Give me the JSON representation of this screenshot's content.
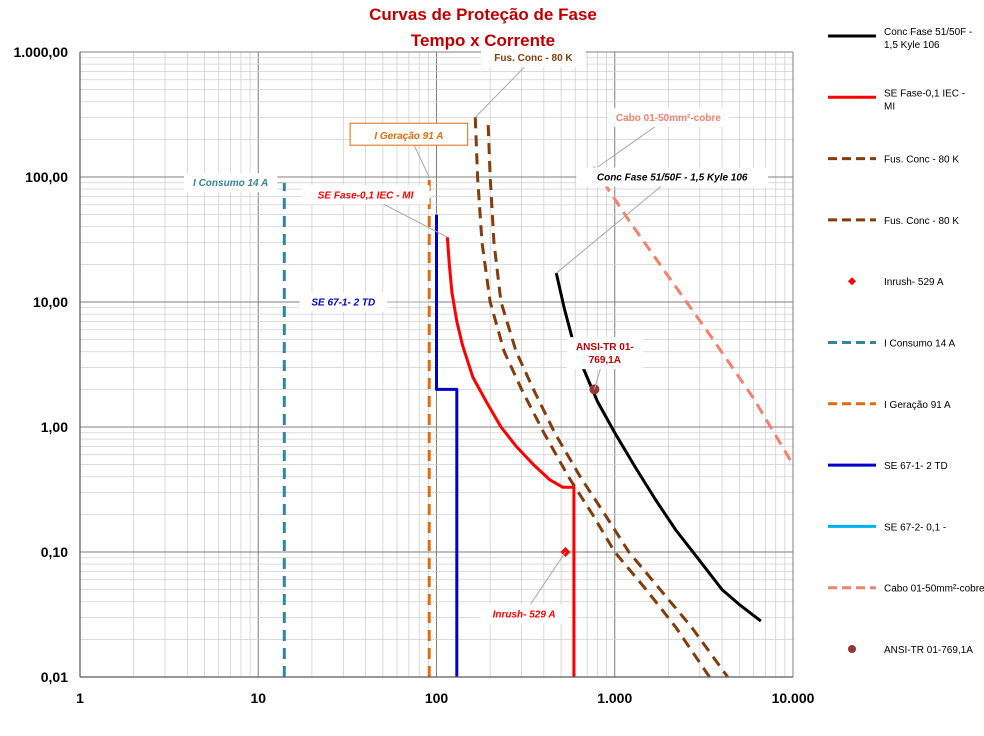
{
  "chart_data": {
    "type": "line",
    "title": "Curvas de Proteção de Fase",
    "subtitle": "Tempo x Corrente",
    "xlabel": "",
    "ylabel": "",
    "x_scale": "log",
    "y_scale": "log",
    "xlim": [
      1,
      10000
    ],
    "ylim": [
      0.01,
      1000
    ],
    "grid": true,
    "legend_position": "right",
    "x_ticks": [
      {
        "value": 1,
        "label": "1"
      },
      {
        "value": 10,
        "label": "10"
      },
      {
        "value": 100,
        "label": "100"
      },
      {
        "value": 1000,
        "label": "1.000"
      },
      {
        "value": 10000,
        "label": "10.000"
      }
    ],
    "y_ticks": [
      {
        "value": 0.01,
        "label": "0,01"
      },
      {
        "value": 0.1,
        "label": "0,10"
      },
      {
        "value": 1,
        "label": "1,00"
      },
      {
        "value": 10,
        "label": "10,00"
      },
      {
        "value": 100,
        "label": "100,00"
      },
      {
        "value": 1000,
        "label": "1.000,00"
      }
    ],
    "series": [
      {
        "name": "Conc Fase 51/50F - 1,5 Kyle 106",
        "color": "#000000",
        "dash": "solid",
        "marker": "none",
        "x": [
          470,
          520,
          580,
          650,
          800,
          1000,
          1300,
          1700,
          2200,
          3000,
          4000,
          5000,
          6600
        ],
        "y": [
          17,
          9,
          5,
          3.2,
          1.6,
          0.9,
          0.48,
          0.26,
          0.15,
          0.085,
          0.05,
          0.038,
          0.028
        ]
      },
      {
        "name": "SE Fase-0,1 IEC - MI",
        "color": "#ff0000",
        "dash": "solid",
        "marker": "none",
        "x": [
          115,
          118,
          122,
          130,
          140,
          160,
          190,
          230,
          280,
          350,
          430,
          510,
          590,
          590,
          590
        ],
        "y": [
          33,
          20,
          12,
          7,
          4.5,
          2.5,
          1.6,
          1.0,
          0.7,
          0.5,
          0.38,
          0.33,
          0.33,
          0.1,
          0.01
        ]
      },
      {
        "name": "Fus. Conc - 80 K",
        "color": "#843c0c",
        "dash": "dashed",
        "marker": "none",
        "x": [
          165,
          170,
          180,
          200,
          240,
          300,
          400,
          550,
          750,
          1000,
          1500,
          2200,
          3400
        ],
        "y": [
          300,
          100,
          30,
          10,
          4,
          2,
          0.9,
          0.4,
          0.2,
          0.1,
          0.05,
          0.025,
          0.01
        ]
      },
      {
        "name": "Fus. Conc - 80 K",
        "color": "#843c0c",
        "dash": "dashed",
        "marker": "none",
        "x": [
          195,
          200,
          210,
          230,
          280,
          350,
          460,
          640,
          880,
          1200,
          1800,
          2700,
          4300
        ],
        "y": [
          260,
          100,
          30,
          10,
          4,
          2,
          0.9,
          0.4,
          0.2,
          0.1,
          0.05,
          0.025,
          0.01
        ]
      },
      {
        "name": "Inrush- 529 A",
        "color": "#ff0000",
        "dash": "none",
        "marker": "diamond",
        "x": [
          529
        ],
        "y": [
          0.1
        ]
      },
      {
        "name": "I Consumo 14 A",
        "color": "#31859c",
        "dash": "dashed",
        "marker": "none",
        "x": [
          14,
          14
        ],
        "y": [
          0.01,
          90
        ]
      },
      {
        "name": "I Geração 91 A",
        "color": "#e36c09",
        "dash": "dashed",
        "marker": "none",
        "x": [
          91,
          91
        ],
        "y": [
          0.01,
          100
        ]
      },
      {
        "name": "SE 67-1- 2 TD",
        "color": "#0000cc",
        "dash": "solid",
        "marker": "none",
        "x": [
          100,
          100,
          130,
          130
        ],
        "y": [
          50,
          2,
          2,
          0.01
        ]
      },
      {
        "name": "SE 67-2- 0,1 -",
        "color": "#00b0f0",
        "dash": "solid",
        "marker": "none",
        "x": [],
        "y": []
      },
      {
        "name": "Cabo 01-50mm²-cobre",
        "color": "#f4806e",
        "dash": "dashed",
        "marker": "none",
        "x": [
          760,
          1200,
          2000,
          3500,
          6000,
          10000
        ],
        "y": [
          120,
          45,
          16,
          5.2,
          1.7,
          0.5
        ]
      },
      {
        "name": "ANSI-TR 01-769,1A",
        "color": "#943634",
        "dash": "none",
        "marker": "circle",
        "x": [
          769.1
        ],
        "y": [
          2
        ]
      }
    ],
    "annotations": [
      {
        "text": "Fus. Conc - 80 K",
        "color": "#843c0c",
        "italic": false,
        "boxed": false,
        "x": 350,
        "y": 900,
        "tx": 165,
        "ty": 300
      },
      {
        "text": "I Geração 91 A",
        "color": "#e36c09",
        "italic": true,
        "boxed": true,
        "x": 70,
        "y": 220,
        "tx": 91,
        "ty": 100
      },
      {
        "text": "I Consumo 14 A",
        "color": "#31859c",
        "italic": true,
        "boxed": false,
        "x": 7,
        "y": 90,
        "tx": 14,
        "ty": 90
      },
      {
        "text": "Cabo 01-50mm²-cobre",
        "color": "#f4806e",
        "italic": false,
        "boxed": false,
        "x": 2000,
        "y": 300,
        "tx": 800,
        "ty": 120
      },
      {
        "text": "Conc Fase 51/50F - 1,5 Kyle 106",
        "color": "#000000",
        "italic": true,
        "boxed": false,
        "x": 2100,
        "y": 100,
        "tx": 470,
        "ty": 17
      },
      {
        "text": "SE Fase-0,1 IEC - MI",
        "color": "#ff0000",
        "italic": true,
        "boxed": false,
        "x": 40,
        "y": 72,
        "tx": 115,
        "ty": 33
      },
      {
        "text": "SE 67-1- 2 TD",
        "color": "#0000cc",
        "italic": true,
        "boxed": false,
        "x": 30,
        "y": 10,
        "tx": 91,
        "ty": 10
      },
      {
        "text": "ANSI-TR 01-",
        "text2": "769,1A",
        "color": "#c00000",
        "italic": false,
        "boxed": false,
        "x": 880,
        "y": 3.9,
        "tx": 769.1,
        "ty": 2
      },
      {
        "text": "Inrush- 529 A",
        "color": "#ff0000",
        "italic": true,
        "boxed": false,
        "x": 310,
        "y": 0.032,
        "tx": 529,
        "ty": 0.1
      }
    ]
  }
}
